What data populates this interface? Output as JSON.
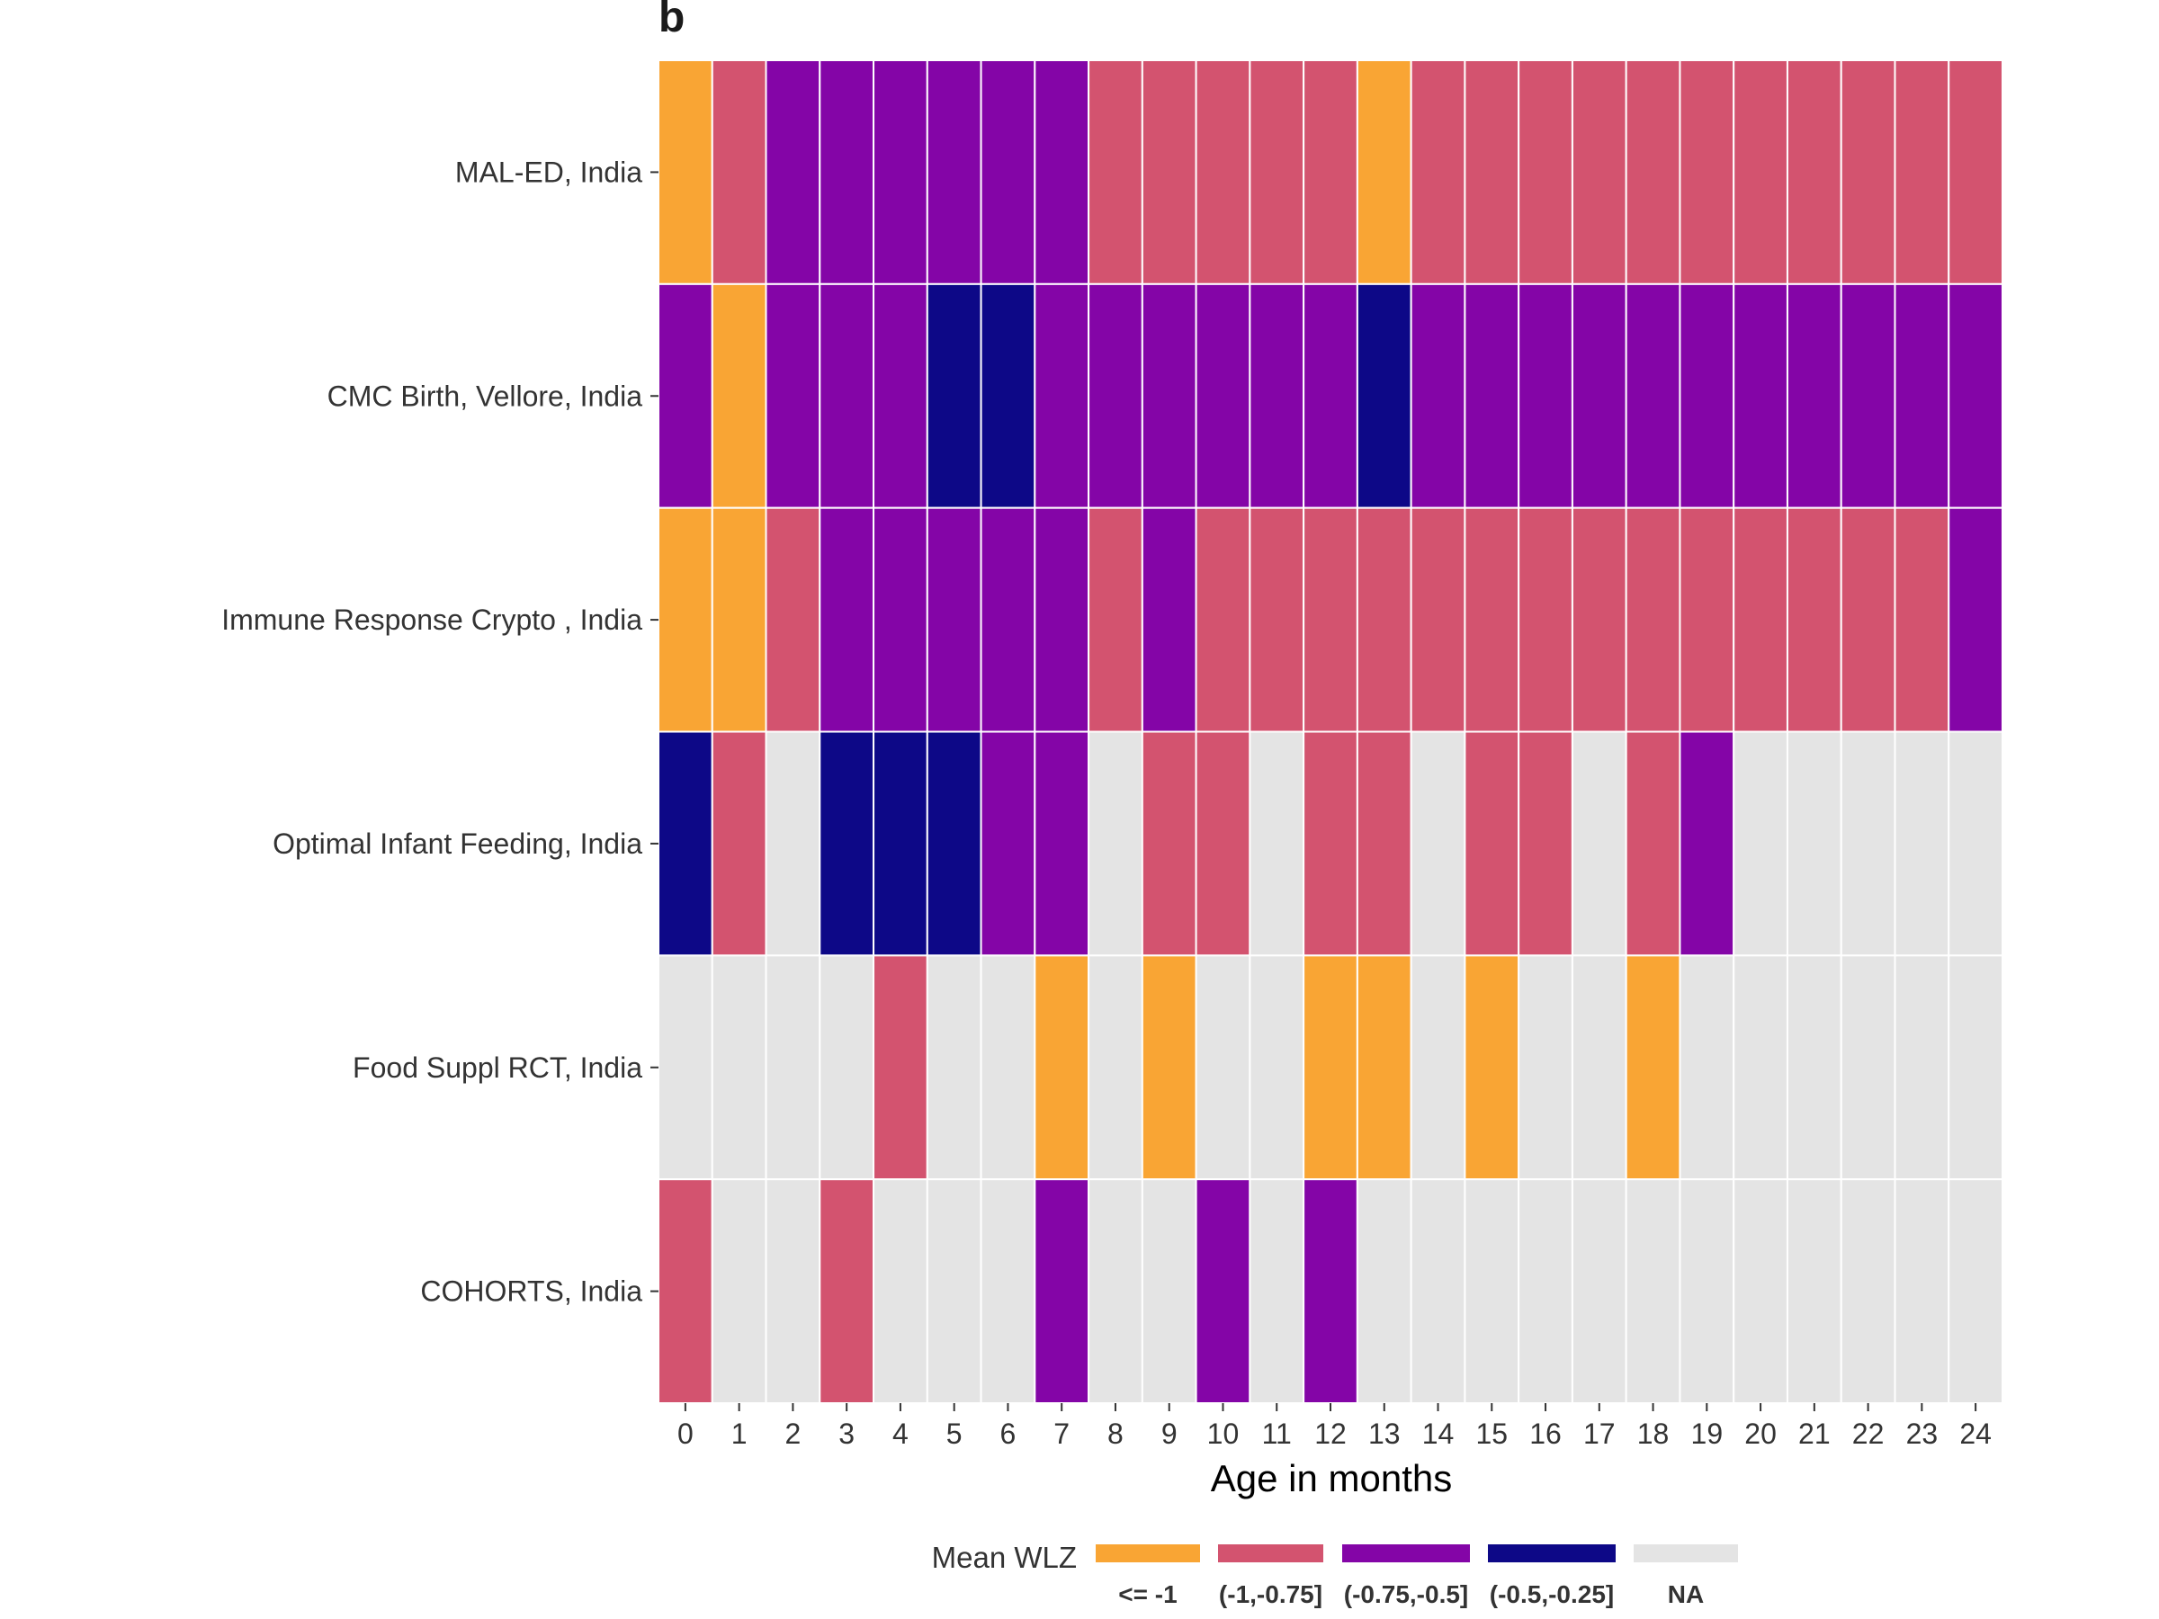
{
  "panel_label": "b",
  "chart_data": {
    "type": "heatmap",
    "xlabel": "Age in months",
    "ylabel": "",
    "x": [
      0,
      1,
      2,
      3,
      4,
      5,
      6,
      7,
      8,
      9,
      10,
      11,
      12,
      13,
      14,
      15,
      16,
      17,
      18,
      19,
      20,
      21,
      22,
      23,
      24
    ],
    "rows": [
      "MAL-ED, India",
      "CMC Birth, Vellore, India",
      "Immune Response Crypto , India",
      "Optimal Infant Feeding, India",
      "Food Suppl RCT, India",
      "COHORTS, India"
    ],
    "categories": [
      "<= -1",
      "(-1,-0.75]",
      "(-0.75,-0.5]",
      "(-0.5,-0.25]",
      "NA"
    ],
    "colors": {
      "<= -1": "#F9A534",
      "(-1,-0.75]": "#D3536F",
      "(-0.75,-0.5]": "#8405A7",
      "(-0.5,-0.25]": "#0D0887",
      "NA": "#E4E4E4"
    },
    "legend": {
      "title": "Mean WLZ",
      "position": "bottom"
    },
    "values": [
      [
        "<= -1",
        "(-1,-0.75]",
        "(-0.75,-0.5]",
        "(-0.75,-0.5]",
        "(-0.75,-0.5]",
        "(-0.75,-0.5]",
        "(-0.75,-0.5]",
        "(-0.75,-0.5]",
        "(-1,-0.75]",
        "(-1,-0.75]",
        "(-1,-0.75]",
        "(-1,-0.75]",
        "(-1,-0.75]",
        "<= -1",
        "(-1,-0.75]",
        "(-1,-0.75]",
        "(-1,-0.75]",
        "(-1,-0.75]",
        "(-1,-0.75]",
        "(-1,-0.75]",
        "(-1,-0.75]",
        "(-1,-0.75]",
        "(-1,-0.75]",
        "(-1,-0.75]",
        "(-1,-0.75]"
      ],
      [
        "(-0.75,-0.5]",
        "<= -1",
        "(-0.75,-0.5]",
        "(-0.75,-0.5]",
        "(-0.75,-0.5]",
        "(-0.5,-0.25]",
        "(-0.5,-0.25]",
        "(-0.75,-0.5]",
        "(-0.75,-0.5]",
        "(-0.75,-0.5]",
        "(-0.75,-0.5]",
        "(-0.75,-0.5]",
        "(-0.75,-0.5]",
        "(-0.5,-0.25]",
        "(-0.75,-0.5]",
        "(-0.75,-0.5]",
        "(-0.75,-0.5]",
        "(-0.75,-0.5]",
        "(-0.75,-0.5]",
        "(-0.75,-0.5]",
        "(-0.75,-0.5]",
        "(-0.75,-0.5]",
        "(-0.75,-0.5]",
        "(-0.75,-0.5]",
        "(-0.75,-0.5]"
      ],
      [
        "<= -1",
        "<= -1",
        "(-1,-0.75]",
        "(-0.75,-0.5]",
        "(-0.75,-0.5]",
        "(-0.75,-0.5]",
        "(-0.75,-0.5]",
        "(-0.75,-0.5]",
        "(-1,-0.75]",
        "(-0.75,-0.5]",
        "(-1,-0.75]",
        "(-1,-0.75]",
        "(-1,-0.75]",
        "(-1,-0.75]",
        "(-1,-0.75]",
        "(-1,-0.75]",
        "(-1,-0.75]",
        "(-1,-0.75]",
        "(-1,-0.75]",
        "(-1,-0.75]",
        "(-1,-0.75]",
        "(-1,-0.75]",
        "(-1,-0.75]",
        "(-1,-0.75]",
        "(-0.75,-0.5]"
      ],
      [
        "(-0.5,-0.25]",
        "(-1,-0.75]",
        "NA",
        "(-0.5,-0.25]",
        "(-0.5,-0.25]",
        "(-0.5,-0.25]",
        "(-0.75,-0.5]",
        "(-0.75,-0.5]",
        "NA",
        "(-1,-0.75]",
        "(-1,-0.75]",
        "NA",
        "(-1,-0.75]",
        "(-1,-0.75]",
        "NA",
        "(-1,-0.75]",
        "(-1,-0.75]",
        "NA",
        "(-1,-0.75]",
        "(-0.75,-0.5]",
        "NA",
        "NA",
        "NA",
        "NA",
        "NA"
      ],
      [
        "NA",
        "NA",
        "NA",
        "NA",
        "(-1,-0.75]",
        "NA",
        "NA",
        "<= -1",
        "NA",
        "<= -1",
        "NA",
        "NA",
        "<= -1",
        "<= -1",
        "NA",
        "<= -1",
        "NA",
        "NA",
        "<= -1",
        "NA",
        "NA",
        "NA",
        "NA",
        "NA",
        "NA"
      ],
      [
        "(-1,-0.75]",
        "NA",
        "NA",
        "(-1,-0.75]",
        "NA",
        "NA",
        "NA",
        "(-0.75,-0.5]",
        "NA",
        "NA",
        "(-0.75,-0.5]",
        "NA",
        "(-0.75,-0.5]",
        "NA",
        "NA",
        "NA",
        "NA",
        "NA",
        "NA",
        "NA",
        "NA",
        "NA",
        "NA",
        "NA",
        "NA"
      ]
    ]
  }
}
